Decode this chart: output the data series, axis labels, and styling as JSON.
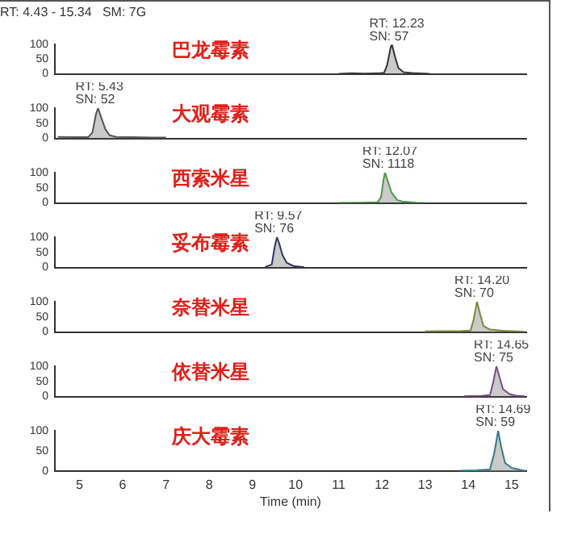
{
  "chart_data": [
    {
      "type": "area",
      "title": "RT: 4.43 - 15.34   SM: 7G",
      "xlim": [
        4.43,
        15.34
      ],
      "ylim": [
        0,
        100
      ],
      "yticks": [
        0,
        50,
        100
      ],
      "grid": false,
      "legend": false,
      "tick_labels": "y",
      "annotations": [
        "巴龙霉素",
        {
          "text": "RT: 12.23",
          "x": 12.23,
          "y": 100
        },
        {
          "text": "SN: 57",
          "x": 12.23,
          "y": 100
        }
      ],
      "series": [
        {
          "color": "#333333",
          "x": [
            11.0,
            11.3,
            11.6,
            11.9,
            12.05,
            12.12,
            12.2,
            12.23,
            12.3,
            12.38,
            12.5,
            12.7,
            13.0,
            13.1
          ],
          "values": [
            0,
            2,
            1,
            2,
            4,
            30,
            90,
            100,
            60,
            20,
            6,
            3,
            1,
            0
          ]
        }
      ]
    },
    {
      "type": "area",
      "xlim": [
        4.43,
        15.34
      ],
      "ylim": [
        0,
        100
      ],
      "yticks": [
        0,
        50,
        100
      ],
      "grid": false,
      "legend": false,
      "tick_labels": "y",
      "annotations": [
        "大观霉素",
        {
          "text": "RT: 5.43",
          "x": 5.43,
          "y": 100
        },
        {
          "text": "SN: 52",
          "x": 5.43,
          "y": 100
        }
      ],
      "series": [
        {
          "color": "#555555",
          "x": [
            4.5,
            4.9,
            5.2,
            5.3,
            5.38,
            5.43,
            5.5,
            5.6,
            5.7,
            5.85,
            6.2,
            6.7,
            7.0
          ],
          "values": [
            5,
            4,
            4,
            20,
            80,
            100,
            70,
            30,
            10,
            5,
            4,
            3,
            3
          ]
        }
      ]
    },
    {
      "type": "area",
      "xlim": [
        4.43,
        15.34
      ],
      "ylim": [
        0,
        100
      ],
      "yticks": [
        0,
        50,
        100
      ],
      "grid": false,
      "legend": false,
      "tick_labels": "y",
      "annotations": [
        "西索米星",
        {
          "text": "RT: 12.07",
          "x": 12.07,
          "y": 100
        },
        {
          "text": "SN: 1118",
          "x": 12.07,
          "y": 100
        }
      ],
      "series": [
        {
          "color": "#4a9a4a",
          "x": [
            11.0,
            11.5,
            11.9,
            11.98,
            12.04,
            12.07,
            12.13,
            12.22,
            12.35,
            12.5,
            12.8,
            13.0
          ],
          "values": [
            0,
            1,
            2,
            20,
            80,
            100,
            75,
            35,
            10,
            4,
            1,
            0
          ]
        }
      ]
    },
    {
      "type": "area",
      "xlim": [
        4.43,
        15.34
      ],
      "ylim": [
        0,
        100
      ],
      "yticks": [
        0,
        50,
        100
      ],
      "grid": false,
      "legend": false,
      "tick_labels": "y",
      "annotations": [
        "妥布霉素",
        {
          "text": "RT: 9.57",
          "x": 9.57,
          "y": 100
        },
        {
          "text": "SN: 76",
          "x": 9.57,
          "y": 100
        }
      ],
      "series": [
        {
          "color": "#333366",
          "x": [
            9.3,
            9.45,
            9.52,
            9.57,
            9.62,
            9.7,
            9.8,
            9.95,
            10.2
          ],
          "values": [
            2,
            10,
            70,
            100,
            80,
            40,
            15,
            5,
            1
          ]
        }
      ]
    },
    {
      "type": "area",
      "xlim": [
        4.43,
        15.34
      ],
      "ylim": [
        0,
        100
      ],
      "yticks": [
        0,
        50,
        100
      ],
      "grid": false,
      "legend": false,
      "tick_labels": "y",
      "annotations": [
        "奈替米星",
        {
          "text": "RT: 14.20",
          "x": 14.2,
          "y": 100
        },
        {
          "text": "SN: 70",
          "x": 14.2,
          "y": 100
        }
      ],
      "series": [
        {
          "color": "#7a8a3a",
          "x": [
            13.0,
            13.4,
            13.8,
            14.05,
            14.12,
            14.2,
            14.27,
            14.35,
            14.5,
            14.8,
            15.1,
            15.3
          ],
          "values": [
            2,
            3,
            3,
            5,
            40,
            100,
            60,
            20,
            8,
            4,
            2,
            1
          ]
        }
      ]
    },
    {
      "type": "area",
      "xlim": [
        4.43,
        15.34
      ],
      "ylim": [
        0,
        100
      ],
      "yticks": [
        0,
        50,
        100
      ],
      "grid": false,
      "legend": false,
      "tick_labels": "y",
      "annotations": [
        "依替米星",
        {
          "text": "RT: 14.65",
          "x": 14.65,
          "y": 100
        },
        {
          "text": "SN: 75",
          "x": 14.65,
          "y": 100
        }
      ],
      "series": [
        {
          "color": "#7a4a8a",
          "x": [
            13.9,
            14.3,
            14.5,
            14.58,
            14.65,
            14.72,
            14.8,
            14.95,
            15.1,
            15.3
          ],
          "values": [
            1,
            2,
            5,
            50,
            100,
            65,
            25,
            8,
            3,
            1
          ]
        }
      ]
    },
    {
      "type": "area",
      "xlabel": "Time (min)",
      "xlim": [
        4.43,
        15.34
      ],
      "xticks": [
        5,
        6,
        7,
        8,
        9,
        10,
        11,
        12,
        13,
        14,
        15
      ],
      "ylim": [
        0,
        100
      ],
      "yticks": [
        0,
        50,
        100
      ],
      "grid": false,
      "legend": false,
      "annotations": [
        "庆大霉素",
        {
          "text": "RT: 14.69",
          "x": 14.69,
          "y": 100
        },
        {
          "text": "SN: 59",
          "x": 14.69,
          "y": 100
        }
      ],
      "series": [
        {
          "color": "#3a7a8a",
          "x": [
            13.8,
            14.2,
            14.5,
            14.6,
            14.69,
            14.76,
            14.85,
            15.0,
            15.2,
            15.3
          ],
          "values": [
            1,
            2,
            4,
            45,
            100,
            60,
            20,
            8,
            3,
            1
          ]
        }
      ]
    }
  ]
}
